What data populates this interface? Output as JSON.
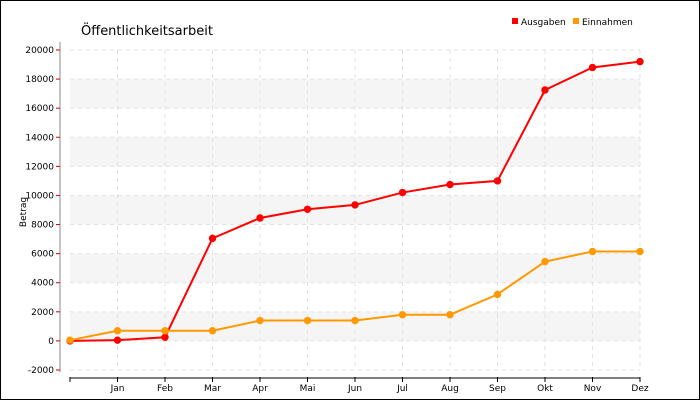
{
  "chart_data": {
    "type": "line",
    "title": "Öffentlichkeitsarbeit",
    "ylabel": "Betrag",
    "xlabel": "",
    "categories": [
      "",
      "Jan",
      "Feb",
      "Mar",
      "Apr",
      "Mai",
      "Jun",
      "Jul",
      "Aug",
      "Sep",
      "Okt",
      "Nov",
      "Dez"
    ],
    "ylim": [
      -2000,
      20000
    ],
    "yticks": [
      "-2000",
      "0",
      "2000",
      "4000",
      "6000",
      "8000",
      "10000",
      "12000",
      "14000",
      "16000",
      "18000",
      "20000"
    ],
    "grid": true,
    "legend_position": "top-right",
    "series": [
      {
        "name": "Ausgaben",
        "color": "#ff0000",
        "values": [
          0,
          50,
          250,
          7050,
          8450,
          9050,
          9350,
          10200,
          10750,
          11000,
          17250,
          18800,
          19200
        ]
      },
      {
        "name": "Einnahmen",
        "color": "#ff9900",
        "values": [
          50,
          700,
          700,
          700,
          1400,
          1400,
          1400,
          1800,
          1800,
          3200,
          5450,
          6150,
          6150
        ]
      }
    ]
  }
}
